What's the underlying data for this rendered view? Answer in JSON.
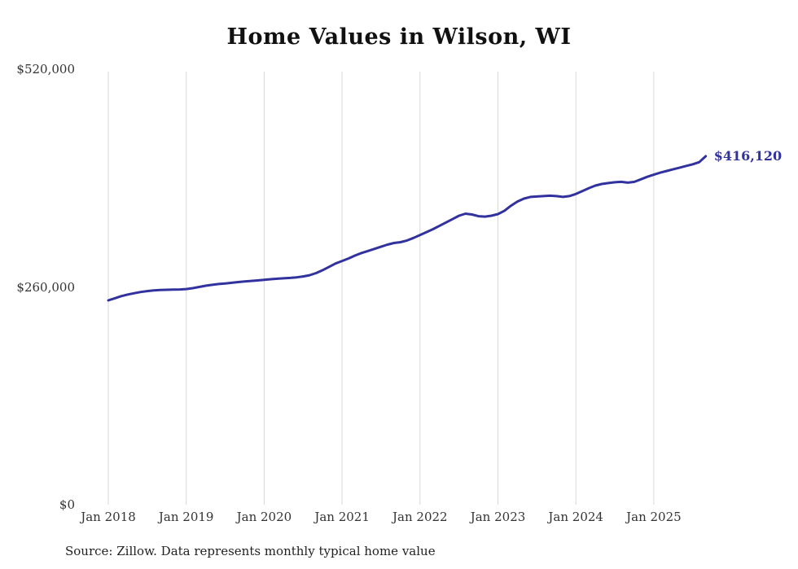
{
  "title": "Home Values in Wilson, WI",
  "source_note": "Source: Zillow. Data represents monthly typical home value",
  "end_label": "$416,120",
  "colors": {
    "line": "#32329f",
    "grid": "#d8d8d8",
    "tick_text": "#333333",
    "title_text": "#111111"
  },
  "chart_data": {
    "type": "line",
    "title": "Home Values in Wilson, WI",
    "xlabel": "",
    "ylabel": "",
    "ylim": [
      0,
      520000
    ],
    "grid": "vertical-only",
    "legend": "none",
    "x_start": "Jan 2018",
    "x_interval": "monthly",
    "x_ticks": [
      "Jan 2018",
      "Jan 2019",
      "Jan 2020",
      "Jan 2021",
      "Jan 2022",
      "Jan 2023",
      "Jan 2024",
      "Jan 2025"
    ],
    "y_ticks": [
      {
        "value": 0,
        "label": "$0"
      },
      {
        "value": 260000,
        "label": "$260,000"
      },
      {
        "value": 520000,
        "label": "$520,000"
      }
    ],
    "end_value": 416120,
    "series": [
      {
        "name": "Typical home value",
        "values": [
          244000,
          246500,
          249000,
          251000,
          252500,
          254000,
          255000,
          255800,
          256300,
          256600,
          256800,
          257000,
          257500,
          258500,
          260000,
          261500,
          262500,
          263500,
          264200,
          265000,
          265800,
          266500,
          267200,
          267800,
          268500,
          269200,
          269800,
          270300,
          270800,
          271500,
          272500,
          274000,
          276500,
          280000,
          284000,
          288000,
          291000,
          294000,
          297500,
          300500,
          303000,
          305500,
          308000,
          310500,
          312500,
          313500,
          315500,
          318500,
          322000,
          325500,
          329000,
          333000,
          337000,
          341000,
          345000,
          347500,
          346500,
          344500,
          344000,
          345000,
          347000,
          351000,
          357000,
          362000,
          365500,
          367500,
          368000,
          368500,
          369000,
          368500,
          367500,
          368500,
          371000,
          374500,
          378000,
          381000,
          383000,
          384000,
          385000,
          385500,
          384500,
          385500,
          388500,
          391500,
          394000,
          396500,
          398500,
          400500,
          402500,
          404500,
          406500,
          409000,
          416120
        ]
      }
    ]
  }
}
